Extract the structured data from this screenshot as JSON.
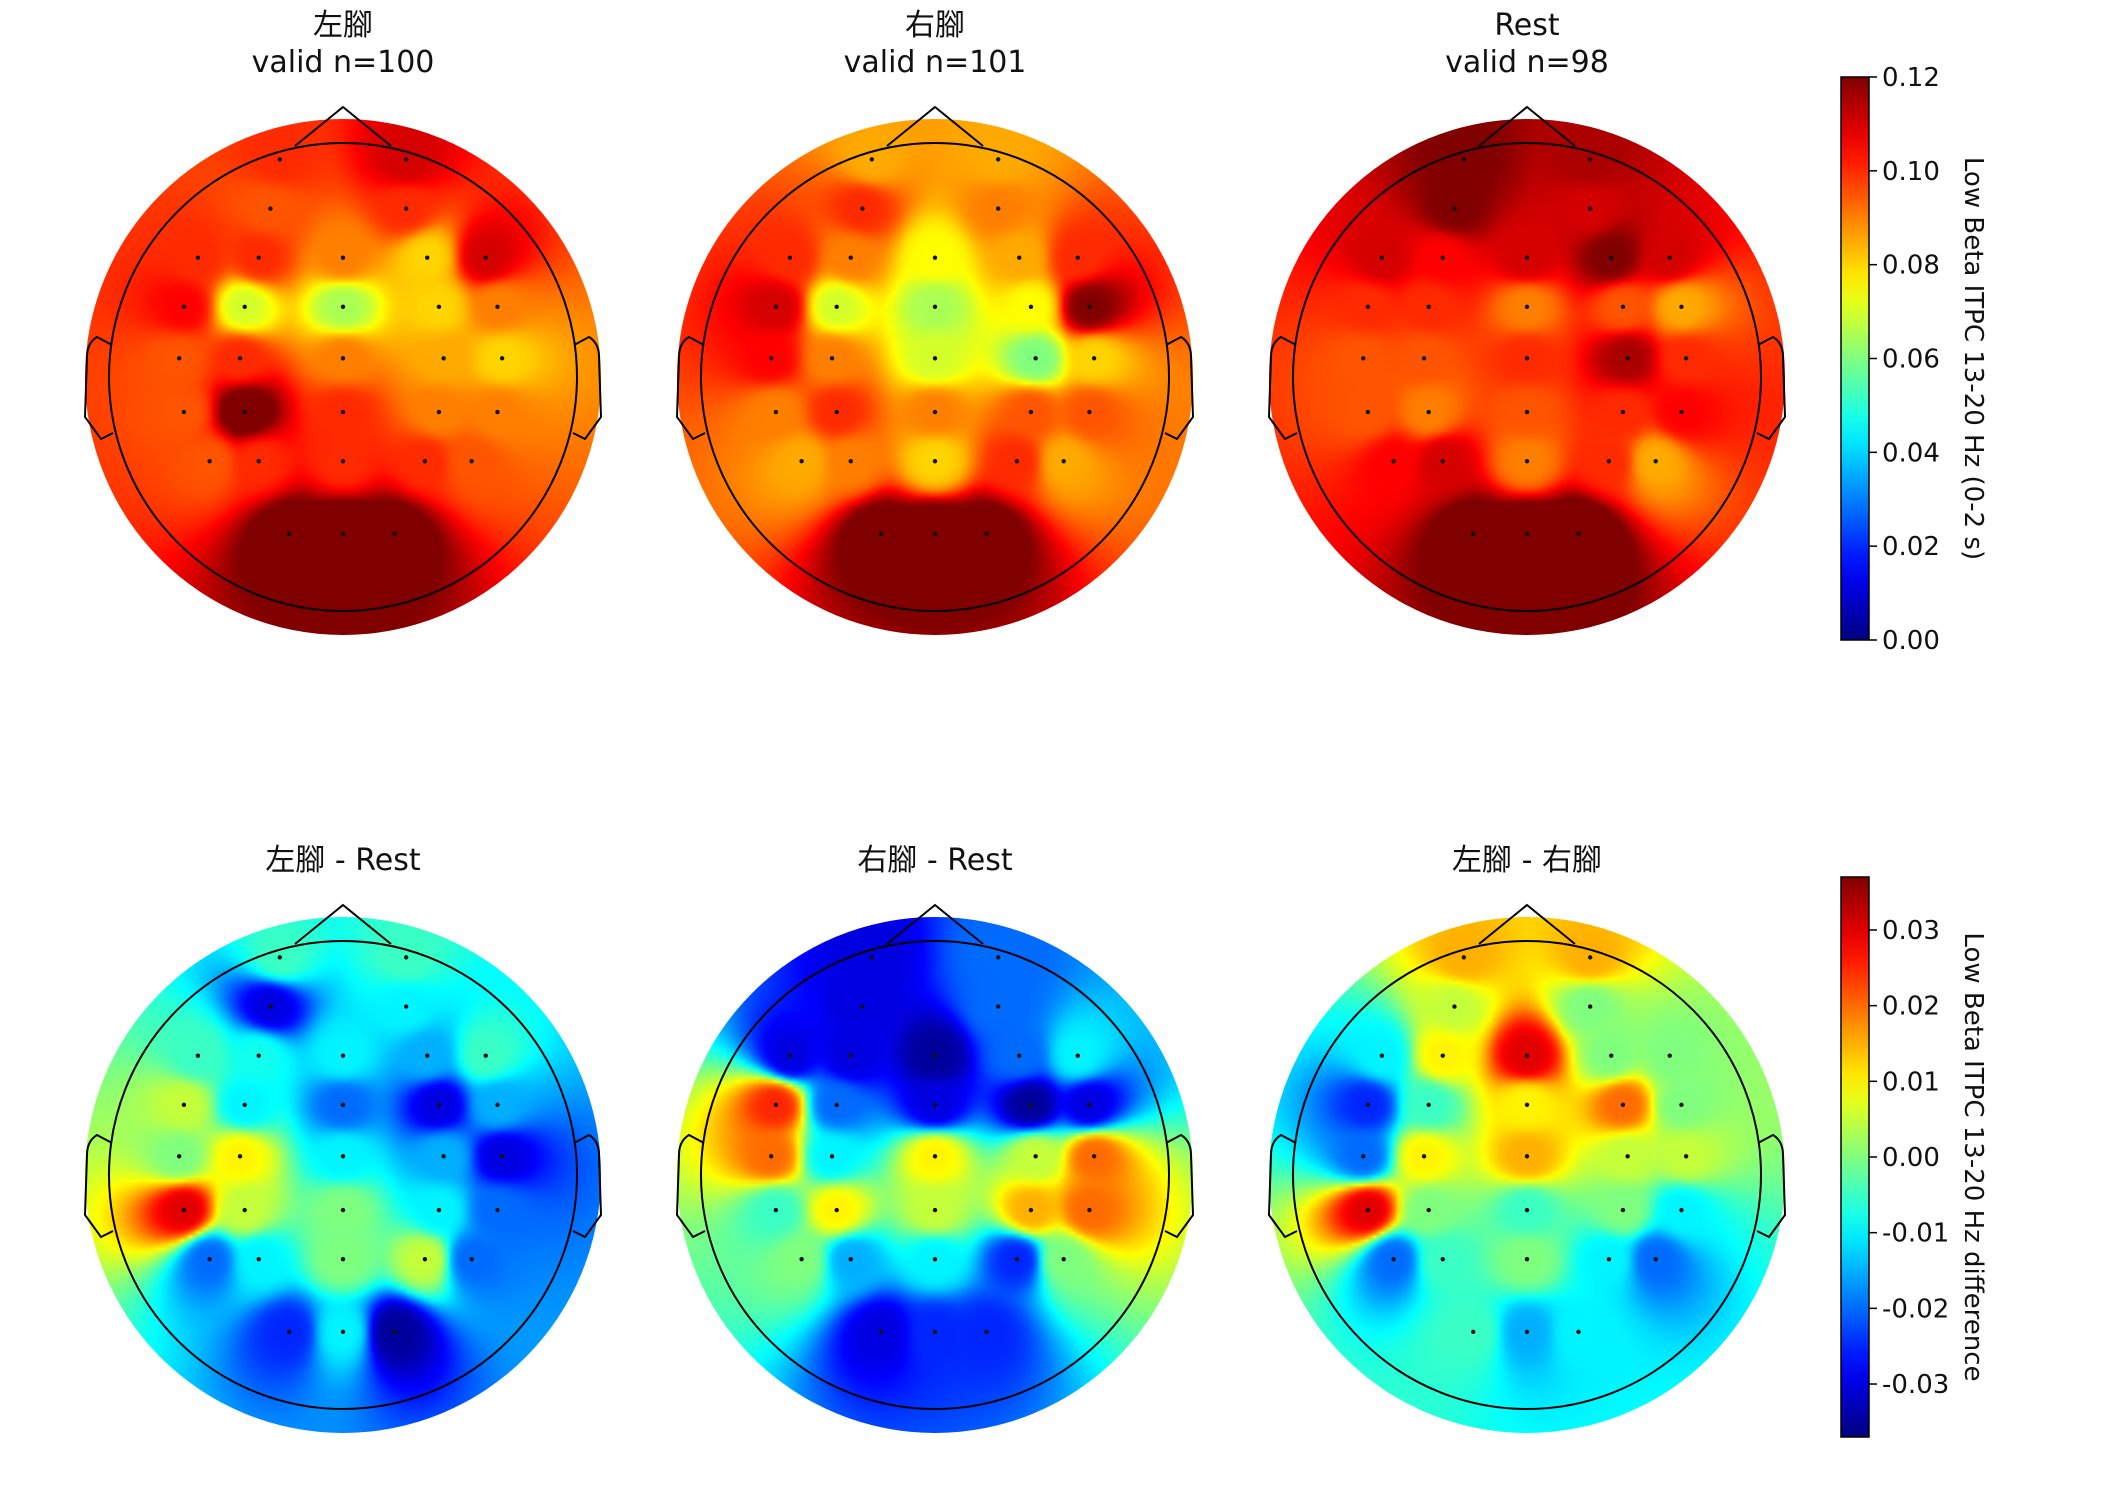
{
  "chart_data": {
    "type": "heatmap",
    "subtype": "eeg-topomap",
    "electrode_count": 32,
    "colormap": "jet",
    "rows": [
      {
        "colorbar": {
          "label": "Low Beta ITPC 13-20 Hz (0-2 s)",
          "range": [
            0.0,
            0.12
          ],
          "ticks": [
            "0.12",
            "0.10",
            "0.08",
            "0.06",
            "0.04",
            "0.02",
            "0.00"
          ],
          "tick_values": [
            0.12,
            0.1,
            0.08,
            0.06,
            0.04,
            0.02,
            0.0
          ]
        },
        "panels": [
          {
            "title_line1": "左腳",
            "title_line2": "valid n=100",
            "electrode_values": [
              0.1,
              0.11,
              0.095,
              0.1,
              0.1,
              0.1,
              0.09,
              0.08,
              0.11,
              0.105,
              0.07,
              0.065,
              0.08,
              0.09,
              0.095,
              0.1,
              0.09,
              0.085,
              0.08,
              0.095,
              0.125,
              0.1,
              0.09,
              0.09,
              0.095,
              0.1,
              0.1,
              0.1,
              0.095,
              0.125,
              0.13,
              0.125
            ]
          },
          {
            "title_line1": "右腳",
            "title_line2": "valid n=101",
            "electrode_values": [
              0.085,
              0.085,
              0.1,
              0.09,
              0.1,
              0.09,
              0.075,
              0.085,
              0.1,
              0.11,
              0.07,
              0.065,
              0.075,
              0.12,
              0.105,
              0.09,
              0.07,
              0.06,
              0.08,
              0.09,
              0.1,
              0.09,
              0.095,
              0.095,
              0.085,
              0.09,
              0.08,
              0.1,
              0.085,
              0.125,
              0.13,
              0.125
            ]
          },
          {
            "title_line1": "Rest",
            "title_line2": "valid n=98",
            "electrode_values": [
              0.12,
              0.115,
              0.12,
              0.11,
              0.11,
              0.105,
              0.11,
              0.12,
              0.11,
              0.1,
              0.1,
              0.09,
              0.095,
              0.085,
              0.095,
              0.095,
              0.1,
              0.115,
              0.1,
              0.095,
              0.09,
              0.095,
              0.1,
              0.105,
              0.105,
              0.11,
              0.09,
              0.1,
              0.085,
              0.125,
              0.13,
              0.13
            ]
          }
        ]
      },
      {
        "colorbar": {
          "label": "Low Beta ITPC 13-20 Hz difference",
          "range": [
            -0.037,
            0.037
          ],
          "ticks": [
            "0.03",
            "0.02",
            "0.01",
            "0.00",
            "-0.01",
            "-0.02",
            "-0.03"
          ],
          "tick_values": [
            0.03,
            0.02,
            0.01,
            0.0,
            -0.01,
            -0.02,
            -0.03
          ]
        },
        "panels": [
          {
            "title_line1": "左腳 - Rest",
            "title_line2": "",
            "electrode_values": [
              -0.005,
              -0.005,
              -0.03,
              -0.01,
              -0.005,
              -0.008,
              -0.01,
              -0.015,
              -0.005,
              0.005,
              -0.01,
              -0.02,
              -0.03,
              -0.015,
              0.0,
              0.01,
              -0.01,
              -0.015,
              -0.03,
              0.03,
              0.005,
              0.0,
              -0.01,
              -0.02,
              -0.02,
              -0.01,
              0.0,
              0.005,
              -0.02,
              -0.025,
              -0.01,
              -0.035
            ]
          },
          {
            "title_line1": "右腳 - Rest",
            "title_line2": "",
            "electrode_values": [
              -0.03,
              -0.02,
              -0.03,
              -0.02,
              -0.03,
              -0.03,
              -0.035,
              -0.02,
              -0.01,
              0.025,
              -0.02,
              -0.03,
              -0.035,
              -0.03,
              0.02,
              -0.01,
              0.01,
              0.005,
              0.02,
              -0.005,
              0.01,
              0.005,
              0.015,
              0.02,
              0.0,
              -0.015,
              -0.01,
              -0.025,
              0.0,
              -0.03,
              -0.025,
              -0.025
            ]
          },
          {
            "title_line1": "左腳 - 右腳",
            "title_line2": "",
            "electrode_values": [
              0.015,
              0.015,
              0.005,
              0.0,
              -0.01,
              0.01,
              0.03,
              0.0,
              0.0,
              -0.025,
              -0.005,
              0.01,
              0.02,
              0.0,
              -0.02,
              0.01,
              0.015,
              0.005,
              0.005,
              0.03,
              0.0,
              -0.005,
              0.0,
              -0.01,
              -0.02,
              -0.005,
              0.0,
              -0.01,
              -0.02,
              -0.005,
              -0.015,
              -0.01
            ]
          }
        ]
      }
    ],
    "xlabel": "",
    "ylabel": "",
    "grid": false,
    "legend": "none"
  }
}
